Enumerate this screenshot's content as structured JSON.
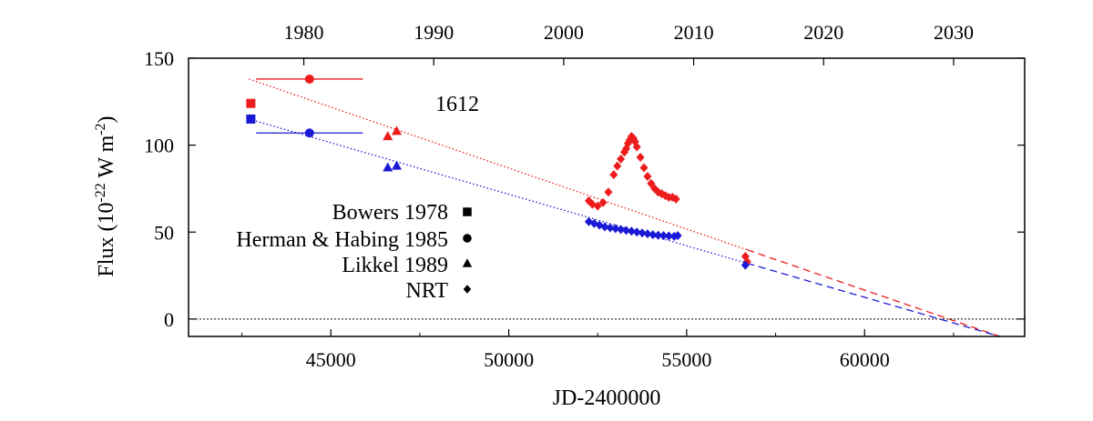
{
  "chart_data": {
    "type": "scatter",
    "xlabel": "JD-2400000",
    "ylabel_main": "Flux (10",
    "ylabel_exp": "-22",
    "ylabel_mid": " W m",
    "ylabel_exp2": "-2",
    "ylabel_end": ")",
    "xlim": [
      41000,
      64500
    ],
    "ylim": [
      -10,
      150
    ],
    "x_ticks": [
      45000,
      50000,
      55000,
      60000
    ],
    "y_ticks": [
      0,
      50,
      100,
      150
    ],
    "top_axis": {
      "label_values": [
        "1980",
        "1990",
        "2000",
        "2010",
        "2020",
        "2030"
      ],
      "label_jd": [
        44239,
        47892,
        51544,
        55197,
        58849,
        62502
      ]
    },
    "annotation": "1612",
    "legend": [
      "Bowers 1978",
      "Herman & Habing 1985",
      "Likkel 1989",
      "NRT"
    ],
    "legend_markers": [
      "square",
      "circle",
      "triangle",
      "diamond"
    ],
    "legend_position": "lower-left",
    "colors": {
      "red": "#ee1c1c",
      "blue": "#1a1ad6",
      "black": "#000000"
    },
    "zero_line": 0,
    "fits": [
      {
        "color": "red",
        "x": [
          42700,
          63800
        ],
        "y": [
          138,
          -10
        ]
      },
      {
        "color": "blue",
        "x": [
          42700,
          63800
        ],
        "y": [
          115,
          -10
        ]
      }
    ],
    "series": [
      {
        "marker": "square",
        "color": "red",
        "x": [
          42750
        ],
        "y": [
          124
        ]
      },
      {
        "marker": "square",
        "color": "blue",
        "x": [
          42750
        ],
        "y": [
          115
        ]
      },
      {
        "marker": "circle",
        "color": "red",
        "x": [
          44400
        ],
        "y": [
          138
        ],
        "xerr": [
          1500
        ]
      },
      {
        "marker": "circle",
        "color": "blue",
        "x": [
          44400
        ],
        "y": [
          107
        ],
        "xerr": [
          1500
        ]
      },
      {
        "marker": "triangle",
        "color": "red",
        "x": [
          46600,
          46850
        ],
        "y": [
          105,
          108
        ]
      },
      {
        "marker": "triangle",
        "color": "blue",
        "x": [
          46600,
          46850
        ],
        "y": [
          87,
          88
        ]
      },
      {
        "marker": "diamond",
        "color": "red",
        "x": [
          52250,
          52350,
          52500,
          52650,
          52800,
          52950,
          53050,
          53150,
          53250,
          53300,
          53350,
          53400,
          53450,
          53500,
          53550,
          53600,
          53700,
          53800,
          53900,
          54000,
          54100,
          54200,
          54300,
          54400,
          54500,
          54600,
          54700,
          56650,
          56700
        ],
        "y": [
          68,
          66,
          65,
          67,
          73,
          83,
          88,
          92,
          96,
          98,
          101,
          103,
          105,
          104,
          102,
          99,
          93,
          87,
          82,
          78,
          75,
          73,
          72,
          71,
          70,
          70,
          69,
          36,
          33
        ]
      },
      {
        "marker": "diamond",
        "color": "blue",
        "x": [
          52250,
          52400,
          52550,
          52700,
          52850,
          53000,
          53150,
          53300,
          53450,
          53600,
          53750,
          53900,
          54050,
          54200,
          54350,
          54500,
          54650,
          54750,
          56650
        ],
        "y": [
          56,
          55,
          54,
          53,
          52.5,
          52,
          51.5,
          51,
          50.5,
          50,
          49.5,
          49,
          48.5,
          48.2,
          48,
          47.8,
          47.6,
          48,
          31
        ]
      }
    ]
  }
}
